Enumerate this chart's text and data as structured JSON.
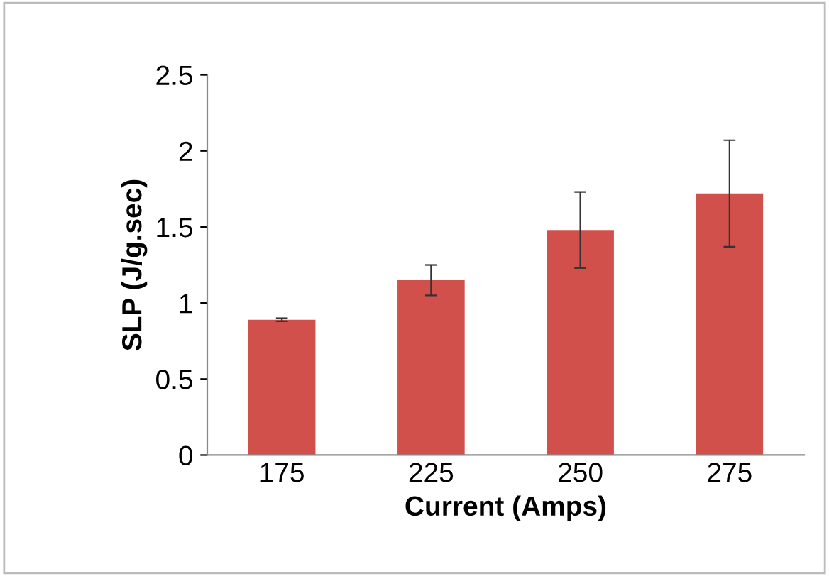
{
  "chart_data": {
    "type": "bar",
    "xlabel": "Current (Amps)",
    "ylabel": "SLP (J/g.sec)",
    "categories": [
      "175",
      "225",
      "250",
      "275"
    ],
    "values": [
      0.89,
      1.15,
      1.48,
      1.72
    ],
    "errors": [
      0.01,
      0.1,
      0.25,
      0.35
    ],
    "color": "#d2504b",
    "ylim": [
      0,
      2.5
    ],
    "yticks": [
      0,
      0.5,
      1,
      1.5,
      2,
      2.5
    ],
    "grid": false,
    "legend": false
  }
}
